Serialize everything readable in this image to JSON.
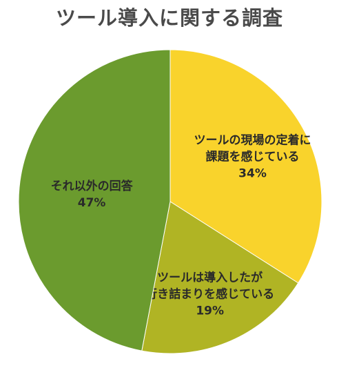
{
  "chart_data": {
    "type": "pie",
    "title": "ツール導入に関する調査",
    "slices": [
      {
        "label_lines": [
          "ツールの現場の定着に",
          "課題を感じている"
        ],
        "value": 34,
        "value_label": "34%",
        "color": "#f9d32c"
      },
      {
        "label_lines": [
          "ツールは導入したが",
          "行き詰まりを感じている"
        ],
        "value": 19,
        "value_label": "19%",
        "color": "#b0b424"
      },
      {
        "label_lines": [
          "それ以外の回答"
        ],
        "value": 47,
        "value_label": "47%",
        "color": "#6b9b2e"
      }
    ]
  }
}
